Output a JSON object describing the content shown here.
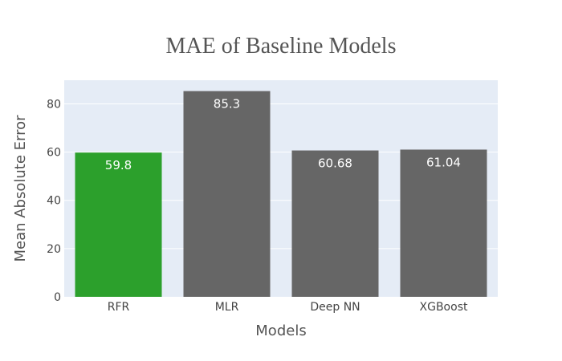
{
  "chart_data": {
    "type": "bar",
    "title": "MAE of Baseline Models",
    "xlabel": "Models",
    "ylabel": "Mean Absolute Error",
    "categories": [
      "RFR",
      "MLR",
      "Deep NN",
      "XGBoost"
    ],
    "values": [
      59.8,
      85.3,
      60.68,
      61.04
    ],
    "value_labels": [
      "59.8",
      "85.3",
      "60.68",
      "61.04"
    ],
    "bar_colors": [
      "#2ca02c",
      "#666666",
      "#666666",
      "#666666"
    ],
    "ylim": [
      0,
      89.8
    ],
    "yticks": [
      0,
      20,
      40,
      60,
      80
    ],
    "ytick_labels": [
      "0",
      "20",
      "40",
      "60",
      "80"
    ],
    "grid": true,
    "plot_background": "#e5ecf6"
  }
}
